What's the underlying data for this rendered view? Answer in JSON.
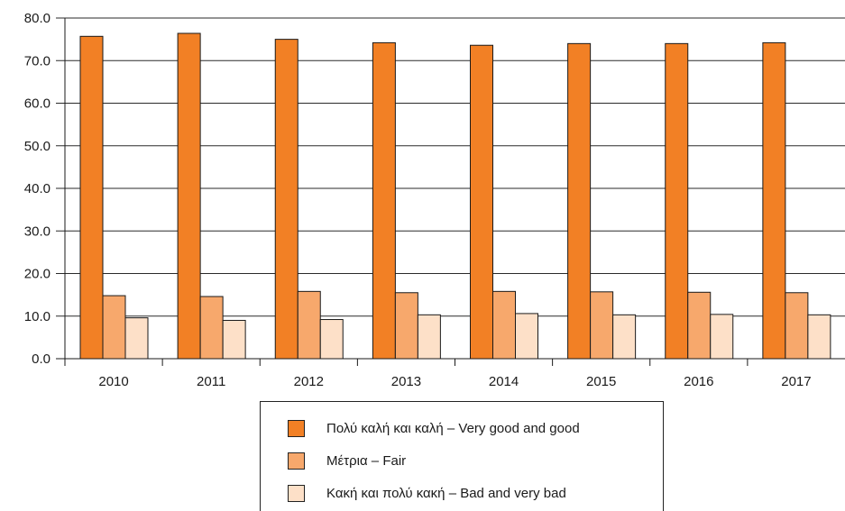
{
  "chart_data": {
    "type": "bar",
    "categories": [
      "2010",
      "2011",
      "2012",
      "2013",
      "2014",
      "2015",
      "2016",
      "2017"
    ],
    "series": [
      {
        "name": "Πολύ καλή και καλή – Very good and good",
        "color": "#f28025",
        "values": [
          75.7,
          76.4,
          75.0,
          74.2,
          73.6,
          74.0,
          74.0,
          74.2
        ]
      },
      {
        "name": "Μέτρια – Fair",
        "color": "#f7a86c",
        "values": [
          14.8,
          14.6,
          15.8,
          15.5,
          15.8,
          15.7,
          15.6,
          15.5
        ]
      },
      {
        "name": "Κακή και πολύ κακή – Bad and very bad",
        "color": "#fde0c8",
        "values": [
          9.6,
          9.0,
          9.2,
          10.3,
          10.6,
          10.3,
          10.4,
          10.3
        ]
      }
    ],
    "y_ticks": [
      "0.0",
      "10.0",
      "20.0",
      "30.0",
      "40.0",
      "50.0",
      "60.0",
      "70.0",
      "80.0"
    ],
    "ylim": [
      0,
      80
    ],
    "grid": true,
    "legend": "bottom-center",
    "title": "",
    "xlabel": "",
    "ylabel": ""
  }
}
